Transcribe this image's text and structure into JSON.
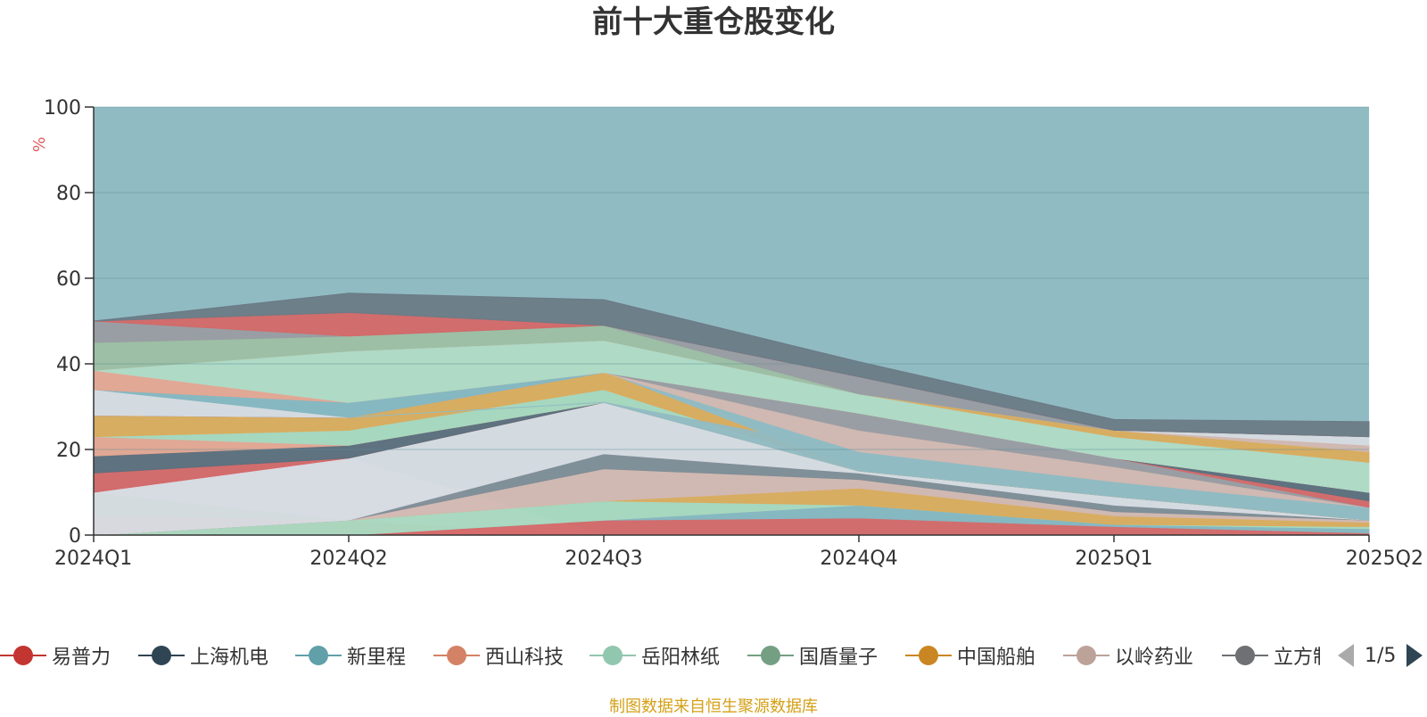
{
  "chart_data": {
    "type": "area",
    "title": "前十大重仓股变化",
    "ylabel": "%",
    "xlabel": "",
    "ylim": [
      0,
      100
    ],
    "yticks": [
      0,
      20,
      40,
      60,
      80,
      100
    ],
    "categories": [
      "2024Q1",
      "2024Q2",
      "2024Q3",
      "2024Q4",
      "2025Q1",
      "2025Q2"
    ],
    "stacked": true,
    "grid": true,
    "legend_position": "bottom",
    "background_series_color": "#91bbc3",
    "bands": [
      {
        "color": "#e5a692",
        "lower": [
          0,
          0,
          0,
          0,
          0,
          0
        ],
        "upper": [
          4.5,
          3.5,
          0,
          0,
          0,
          0
        ]
      },
      {
        "color": "#9dd2b3",
        "lower": [
          4.5,
          3.5,
          0,
          0,
          0,
          0
        ],
        "upper": [
          10,
          3.5,
          0,
          0,
          0,
          0
        ]
      },
      {
        "color": "#d7dbe2",
        "lower": [
          10,
          3.5,
          0,
          0,
          0,
          0
        ],
        "upper": [
          10,
          18,
          0,
          0,
          0,
          0
        ]
      },
      {
        "color": "#d56868",
        "lower": [
          0,
          0,
          0,
          0,
          0,
          0
        ],
        "upper": [
          0,
          0,
          3.5,
          4,
          2,
          0.5
        ]
      },
      {
        "color": "#86b7c1",
        "lower": [
          0,
          0,
          3.5,
          4,
          2,
          0.5
        ],
        "upper": [
          0,
          0,
          3.5,
          7,
          2.5,
          1.5
        ]
      },
      {
        "color": "#a8d8bf",
        "lower": [
          0,
          0,
          3.5,
          7,
          2.5,
          1.5
        ],
        "upper": [
          0,
          3.5,
          8,
          7,
          2.5,
          2
        ]
      },
      {
        "color": "#dbac5d",
        "lower": [
          0,
          3.5,
          8,
          7,
          2.5,
          2
        ],
        "upper": [
          0,
          3.5,
          8,
          11,
          4.5,
          3
        ]
      },
      {
        "color": "#d3b8b1",
        "lower": [
          0,
          3.5,
          8,
          11,
          4.5,
          3
        ],
        "upper": [
          0,
          3.5,
          15.5,
          13,
          5.5,
          3.5
        ]
      },
      {
        "color": "#808d96",
        "lower": [
          0,
          3.5,
          15.5,
          13,
          5.5,
          3.5
        ],
        "upper": [
          0,
          3.5,
          19,
          14.5,
          7,
          3.5
        ]
      },
      {
        "color": "#d7dbe2",
        "lower": [
          0,
          3.5,
          19,
          14.5,
          7,
          3.5
        ],
        "upper": [
          10,
          18,
          31,
          15,
          9,
          3.5
        ]
      },
      {
        "color": "#d56868",
        "lower": [
          10,
          18,
          31,
          15,
          9,
          3.5
        ],
        "upper": [
          14.5,
          18,
          31,
          15,
          9,
          3.5
        ]
      },
      {
        "color": "#5d6e7c",
        "lower": [
          14.5,
          18,
          31,
          15,
          9,
          3.5
        ],
        "upper": [
          18.5,
          21,
          31,
          15,
          9,
          3.5
        ]
      },
      {
        "color": "#e5a692",
        "lower": [
          18.5,
          21,
          31,
          15,
          9,
          3.5
        ],
        "upper": [
          23,
          21,
          31,
          15,
          9,
          3.5
        ]
      },
      {
        "color": "#a8d8bf",
        "lower": [
          23,
          21,
          31,
          15,
          9,
          3.5
        ],
        "upper": [
          23,
          24.5,
          34,
          15,
          9,
          3.5
        ]
      },
      {
        "color": "#dbac5d",
        "lower": [
          23,
          24.5,
          34,
          15,
          9,
          3.5
        ],
        "upper": [
          28,
          27.5,
          38,
          15,
          9,
          3.5
        ]
      },
      {
        "color": "#91bbc3",
        "lower": [
          28,
          27.5,
          31,
          15,
          9,
          3.5
        ],
        "upper": [
          28,
          27.5,
          31,
          19.5,
          12.5,
          6.5
        ]
      },
      {
        "color": "#d3b8b1",
        "lower": [
          28,
          27.5,
          38,
          19.5,
          12.5,
          6.5
        ],
        "upper": [
          28,
          27.5,
          38,
          24.5,
          16,
          6.5
        ]
      },
      {
        "color": "#9a9ca2",
        "lower": [
          28,
          27.5,
          38,
          24.5,
          16,
          6.5
        ],
        "upper": [
          28,
          27.5,
          38,
          28.5,
          18,
          6.5
        ]
      },
      {
        "color": "#d56868",
        "lower": [
          28,
          27.5,
          38,
          28.5,
          18,
          6.5
        ],
        "upper": [
          28,
          27.5,
          38,
          28.5,
          18,
          8
        ]
      },
      {
        "color": "#5d6e7c",
        "lower": [
          28,
          27.5,
          38,
          28.5,
          18,
          8
        ],
        "upper": [
          28,
          27.5,
          38,
          28.5,
          18,
          10
        ]
      },
      {
        "color": "#d7dbe2",
        "lower": [
          28,
          27.5,
          38,
          28.5,
          18,
          10
        ],
        "upper": [
          34,
          27.5,
          38,
          28.5,
          18,
          10
        ]
      },
      {
        "color": "#86b7c1",
        "lower": [
          34,
          27.5,
          38,
          28.5,
          18,
          10
        ],
        "upper": [
          34,
          31,
          38,
          28.5,
          18,
          10
        ]
      },
      {
        "color": "#e5a692",
        "lower": [
          34,
          31,
          38,
          28.5,
          18,
          10
        ],
        "upper": [
          38.5,
          31,
          38,
          28.5,
          18,
          10
        ]
      },
      {
        "color": "#b0dbc6",
        "lower": [
          38.5,
          31,
          38,
          28.5,
          18,
          10
        ],
        "upper": [
          38.5,
          43,
          45.5,
          33,
          23,
          17
        ]
      },
      {
        "color": "#dbac5d",
        "lower": [
          38.5,
          43,
          45.5,
          33,
          23,
          17
        ],
        "upper": [
          38.5,
          43,
          45.5,
          33,
          24.5,
          19.5
        ]
      },
      {
        "color": "#d3b8b1",
        "lower": [
          38.5,
          43,
          45.5,
          33,
          24.5,
          19.5
        ],
        "upper": [
          38.5,
          43,
          45.5,
          33,
          24.5,
          21
        ]
      },
      {
        "color": "#d7dbe2",
        "lower": [
          38.5,
          43,
          45.5,
          33,
          24.5,
          21
        ],
        "upper": [
          38.5,
          43,
          45.5,
          33,
          24.5,
          23
        ]
      },
      {
        "color": "#9dbfa3",
        "lower": [
          38.5,
          43,
          45.5,
          33,
          24.5,
          23
        ],
        "upper": [
          45,
          46.5,
          49,
          33,
          24.5,
          23
        ]
      },
      {
        "color": "#9a9ca2",
        "lower": [
          45,
          46.5,
          49,
          33,
          24.5,
          23
        ],
        "upper": [
          50,
          46.5,
          49,
          37,
          24.5,
          23
        ]
      },
      {
        "color": "#d56868",
        "lower": [
          50,
          46.5,
          49,
          37,
          24.5,
          23
        ],
        "upper": [
          50,
          52,
          49,
          37,
          24.5,
          23
        ]
      },
      {
        "color": "#6b7b86",
        "lower": [
          50,
          52,
          49,
          37,
          24.5,
          23
        ],
        "upper": [
          50,
          56.5,
          55,
          40.5,
          27,
          26.5
        ]
      }
    ]
  },
  "legend": {
    "items": [
      {
        "label": "易普力",
        "color": "#c23531"
      },
      {
        "label": "上海机电",
        "color": "#2f4554"
      },
      {
        "label": "新里程",
        "color": "#61a0a8"
      },
      {
        "label": "西山科技",
        "color": "#d48265"
      },
      {
        "label": "岳阳林纸",
        "color": "#91c7ae"
      },
      {
        "label": "国盾量子",
        "color": "#749f83"
      },
      {
        "label": "中国船舶",
        "color": "#ca8622"
      },
      {
        "label": "以岭药业",
        "color": "#bda29a"
      },
      {
        "label": "立方制药",
        "color": "#6e7074"
      }
    ],
    "page": "1/5"
  },
  "source_note": "制图数据来自恒生聚源数据库"
}
